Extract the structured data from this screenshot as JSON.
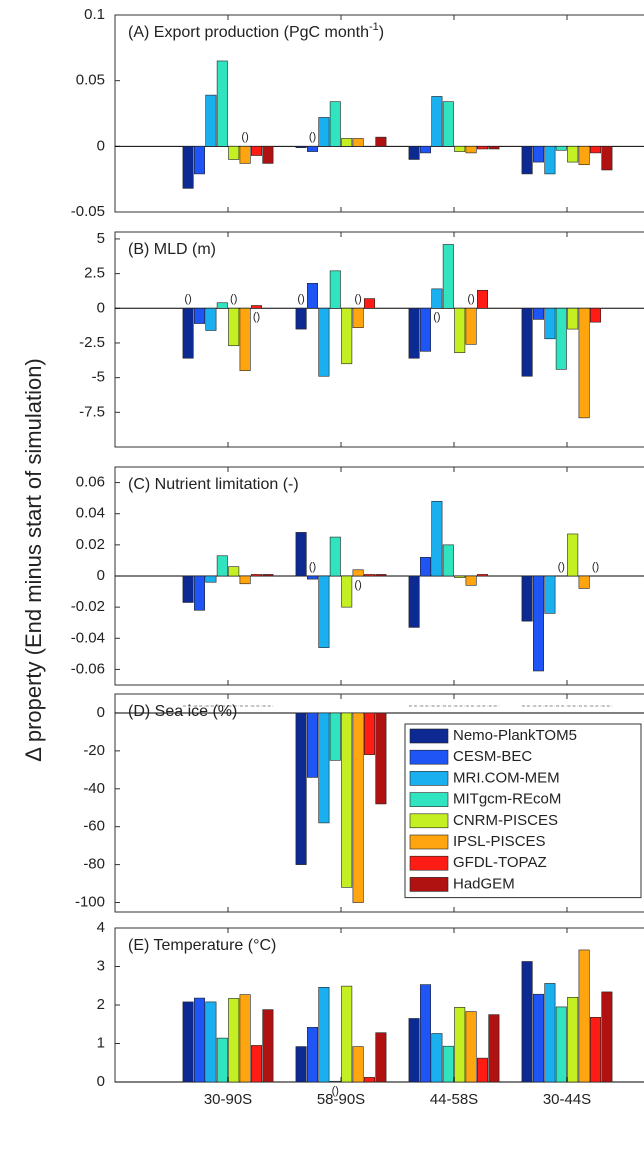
{
  "y_label": "Δ property (End minus start of simulation)",
  "chart_data": [
    {
      "type": "bar",
      "title": "(A) Export production (PgC month",
      "title_sup": "-1",
      "title_end": ")",
      "ylim": [
        -0.05,
        0.1
      ],
      "yticks": [
        0.1,
        0.05,
        0,
        -0.05
      ],
      "series": [
        {
          "values": [
            -0.032,
            -0.001,
            -0.01,
            -0.021
          ]
        },
        {
          "values": [
            -0.021,
            -0.004,
            -0.005,
            -0.012
          ]
        },
        {
          "values": [
            0.039,
            0.022,
            0.038,
            -0.021
          ]
        },
        {
          "values": [
            0.065,
            0.034,
            0.034,
            -0.003
          ]
        },
        {
          "values": [
            -0.01,
            0.006,
            -0.004,
            -0.012
          ]
        },
        {
          "values": [
            -0.013,
            0.006,
            -0.005,
            -0.014
          ]
        },
        {
          "values": [
            -0.007,
            0,
            -0.002,
            -0.005
          ]
        },
        {
          "values": [
            -0.013,
            0.007,
            -0.002,
            -0.018
          ]
        }
      ],
      "annotations": [
        {
          "text": "()",
          "category": 0,
          "series": 5
        },
        {
          "text": "()",
          "category": 1,
          "series": 1
        }
      ]
    },
    {
      "type": "bar",
      "title": "(B) MLD (m)",
      "ylim": [
        -10,
        5.5
      ],
      "yticks": [
        5,
        2.5,
        0,
        -2.5,
        -5,
        -7.5
      ],
      "series": [
        {
          "values": [
            -3.6,
            -1.5,
            -3.6,
            -4.9
          ]
        },
        {
          "values": [
            -1.1,
            1.8,
            -3.1,
            -0.8
          ]
        },
        {
          "values": [
            -1.6,
            -4.9,
            1.4,
            -2.2
          ]
        },
        {
          "values": [
            0.4,
            2.7,
            4.6,
            -4.4
          ]
        },
        {
          "values": [
            -2.7,
            -4.0,
            -3.2,
            -1.5
          ]
        },
        {
          "values": [
            -4.5,
            -1.4,
            -2.6,
            -7.9
          ]
        },
        {
          "values": [
            0.2,
            0.7,
            1.3,
            -1.0
          ]
        },
        {
          "values": [
            0,
            0,
            0,
            0
          ]
        }
      ],
      "annotations": [
        {
          "text": "()",
          "category": 0,
          "series": 0
        },
        {
          "text": "()",
          "category": 0,
          "series": 4
        },
        {
          "text": "()",
          "category": 0,
          "series": 6
        },
        {
          "text": "()",
          "category": 1,
          "series": 0
        },
        {
          "text": "()",
          "category": 1,
          "series": 5
        },
        {
          "text": "()",
          "category": 2,
          "series": 2
        },
        {
          "text": "()",
          "category": 2,
          "series": 5
        }
      ]
    },
    {
      "type": "bar",
      "title": "(C) Nutrient limitation (-)",
      "ylim": [
        -0.07,
        0.07
      ],
      "yticks": [
        0.06,
        0.04,
        0.02,
        0,
        -0.02,
        -0.04,
        -0.06
      ],
      "series": [
        {
          "values": [
            -0.017,
            0.028,
            -0.033,
            -0.029
          ]
        },
        {
          "values": [
            -0.022,
            -0.002,
            0.012,
            -0.061
          ]
        },
        {
          "values": [
            -0.004,
            -0.046,
            0.048,
            -0.024
          ]
        },
        {
          "values": [
            0.013,
            0.025,
            0.02,
            0
          ]
        },
        {
          "values": [
            0.006,
            -0.02,
            -0.001,
            0.027
          ]
        },
        {
          "values": [
            -0.005,
            0.004,
            -0.006,
            -0.008
          ]
        },
        {
          "values": [
            0.001,
            0.001,
            0.001,
            0
          ]
        },
        {
          "values": [
            0.001,
            0.001,
            0,
            0
          ]
        }
      ],
      "annotations": [
        {
          "text": "()",
          "category": 1,
          "series": 1
        },
        {
          "text": "()",
          "category": 1,
          "series": 5
        },
        {
          "text": "()",
          "category": 3,
          "series": 3
        },
        {
          "text": "()",
          "category": 3,
          "series": 6
        }
      ]
    },
    {
      "type": "bar",
      "title": "(D) Sea ice (%)",
      "zero_dashed": true,
      "ylim": [
        -105,
        10
      ],
      "yticks": [
        0,
        -20,
        -40,
        -60,
        -80,
        -100
      ],
      "series": [
        {
          "name": "Nemo-PlankTOM5",
          "color": "#0c2a91",
          "values": [
            0,
            -80,
            0,
            0
          ]
        },
        {
          "name": "CESM-BEC",
          "color": "#1f55f5",
          "values": [
            0,
            -34,
            0,
            0
          ]
        },
        {
          "name": "MRI.COM-MEM",
          "color": "#1ab0f0",
          "values": [
            0,
            -58,
            0,
            0
          ]
        },
        {
          "name": "MITgcm-REcoM",
          "color": "#30e4c0",
          "values": [
            0,
            -25,
            0,
            0
          ]
        },
        {
          "name": "CNRM-PISCES",
          "color": "#c4ef22",
          "values": [
            0,
            -92,
            0,
            0
          ]
        },
        {
          "name": "IPSL-PISCES",
          "color": "#ffa510",
          "values": [
            0,
            -100,
            0,
            0
          ]
        },
        {
          "name": "GFDL-TOPAZ",
          "color": "#ff1c14",
          "values": [
            0,
            -22,
            0,
            0
          ]
        },
        {
          "name": "HadGEM",
          "color": "#b01212",
          "values": [
            0,
            -48,
            0,
            0
          ]
        }
      ],
      "legend": "upper right"
    },
    {
      "type": "bar",
      "title": "(E) Temperature (°C)",
      "categories": [
        "30-90S",
        "58-90S",
        "44-58S",
        "30-44S"
      ],
      "ylim": [
        0,
        4
      ],
      "yticks": [
        0,
        1,
        2,
        3,
        4
      ],
      "series": [
        {
          "values": [
            2.08,
            0.92,
            1.65,
            3.13
          ]
        },
        {
          "values": [
            2.18,
            1.42,
            2.53,
            2.28
          ]
        },
        {
          "values": [
            2.08,
            2.46,
            1.26,
            2.56
          ]
        },
        {
          "values": [
            1.14,
            0.02,
            0.93,
            1.95
          ]
        },
        {
          "values": [
            2.17,
            2.49,
            1.94,
            2.2
          ]
        },
        {
          "values": [
            2.27,
            0.92,
            1.83,
            3.43
          ]
        },
        {
          "values": [
            0.95,
            0.12,
            0.62,
            1.68
          ]
        },
        {
          "values": [
            1.88,
            1.28,
            1.75,
            2.34
          ]
        }
      ],
      "annotations": [
        {
          "text": "()",
          "category": 1,
          "series": 3
        }
      ]
    }
  ]
}
